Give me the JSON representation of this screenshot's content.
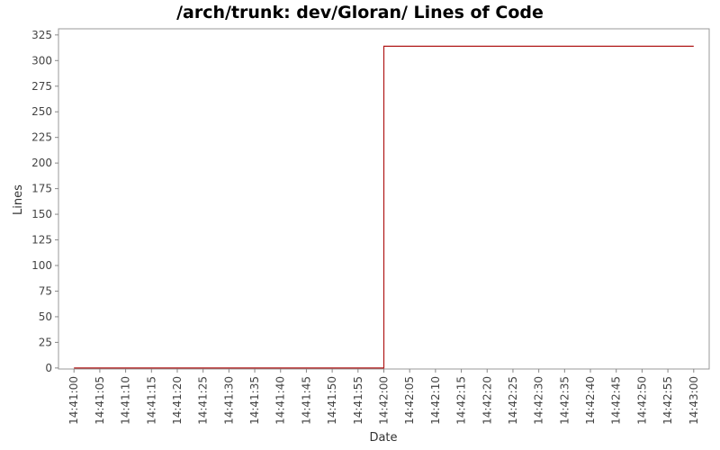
{
  "chart_data": {
    "type": "line",
    "title": "/arch/trunk: dev/Gloran/ Lines of Code",
    "x_label": "Date",
    "y_label": "Lines",
    "x": [
      "14:41:00",
      "14:42:00",
      "14:42:00",
      "14:43:00"
    ],
    "series": [
      {
        "name": "Lines",
        "color": "#b01818",
        "values": [
          0,
          0,
          314,
          314
        ]
      }
    ],
    "xlim": [
      "14:40:57",
      "14:43:03"
    ],
    "xticks": [
      "14:41:00",
      "14:41:05",
      "14:41:10",
      "14:41:15",
      "14:41:20",
      "14:41:25",
      "14:41:30",
      "14:41:35",
      "14:41:40",
      "14:41:45",
      "14:41:50",
      "14:41:55",
      "14:42:00",
      "14:42:05",
      "14:42:10",
      "14:42:15",
      "14:42:20",
      "14:42:25",
      "14:42:30",
      "14:42:35",
      "14:42:40",
      "14:42:45",
      "14:42:50",
      "14:42:55",
      "14:43:00"
    ],
    "ylim": [
      -1,
      331
    ],
    "yticks": [
      0,
      25,
      50,
      75,
      100,
      125,
      150,
      175,
      200,
      225,
      250,
      275,
      300,
      325
    ],
    "grid": false
  }
}
